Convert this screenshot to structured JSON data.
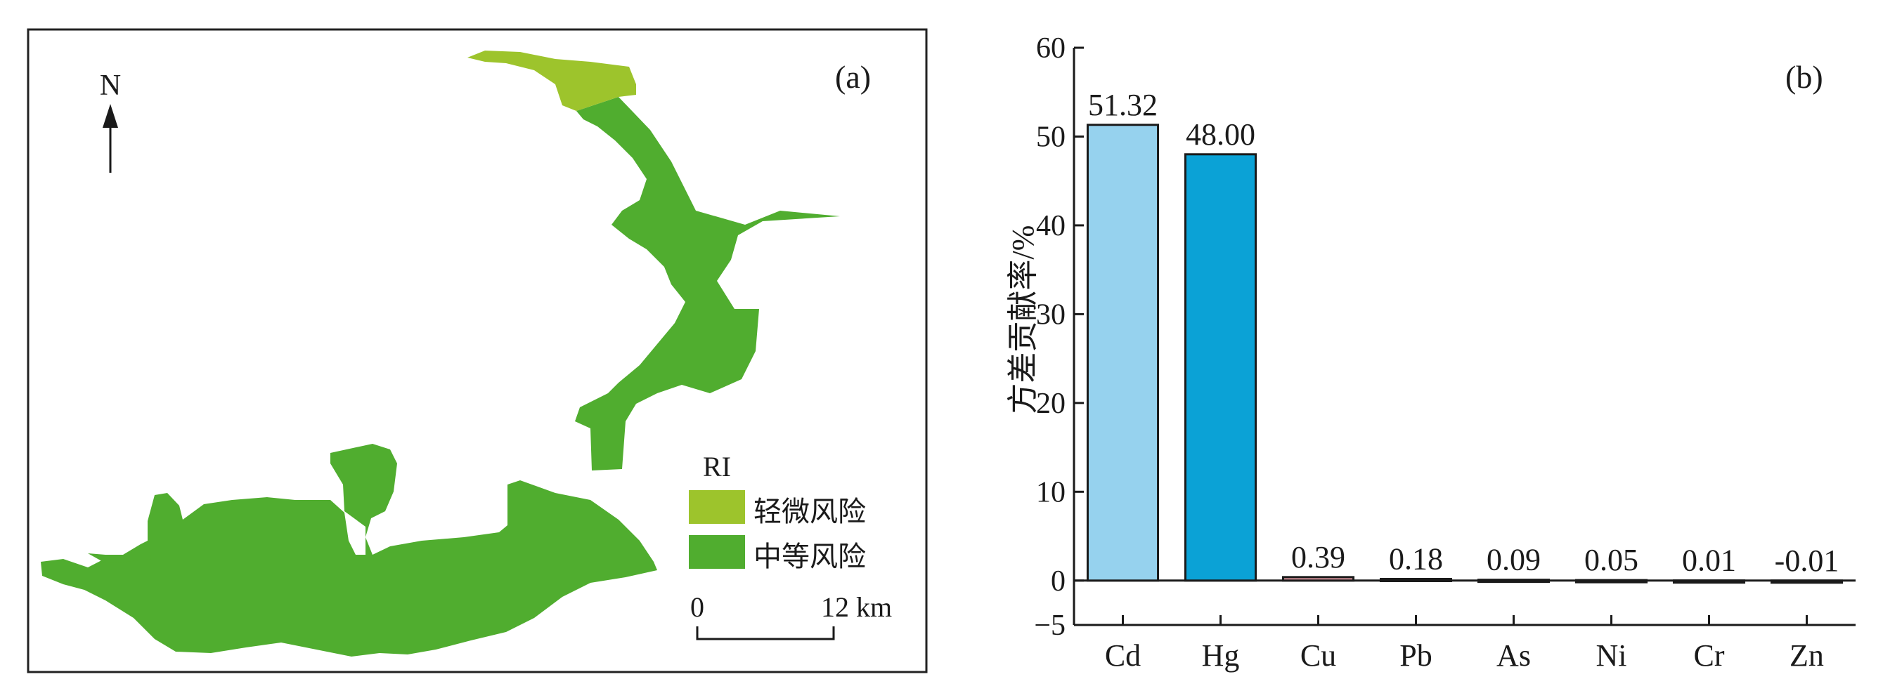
{
  "panel_a": {
    "label": "(a)",
    "north": "N",
    "legend": {
      "title": "RI",
      "items": [
        {
          "label": "轻微风险",
          "color": "#9dc42c"
        },
        {
          "label": "中等风险",
          "color": "#50ad2f"
        }
      ]
    },
    "scale": {
      "start": "0",
      "end": "12 km"
    }
  },
  "chart_data": {
    "type": "bar",
    "label": "(b)",
    "title": "",
    "xlabel": "",
    "ylabel": "方差贡献率/%",
    "categories": [
      "Cd",
      "Hg",
      "Cu",
      "Pb",
      "As",
      "Ni",
      "Cr",
      "Zn"
    ],
    "values": [
      51.32,
      48.0,
      0.39,
      0.18,
      0.09,
      0.05,
      0.01,
      -0.01
    ],
    "data_labels": [
      "51.32",
      "48.00",
      "0.39",
      "0.18",
      "0.09",
      "0.05",
      "0.01",
      "-0.01"
    ],
    "ylim": [
      -5,
      60
    ],
    "yticks": [
      -5,
      0,
      10,
      20,
      30,
      40,
      50,
      60
    ],
    "colors": [
      "#96d2ee",
      "#0ba2d6",
      "#d8949c",
      "#d8949c",
      "#d8949c",
      "#d8949c",
      "#d8949c",
      "#d8949c"
    ],
    "grid": false
  }
}
